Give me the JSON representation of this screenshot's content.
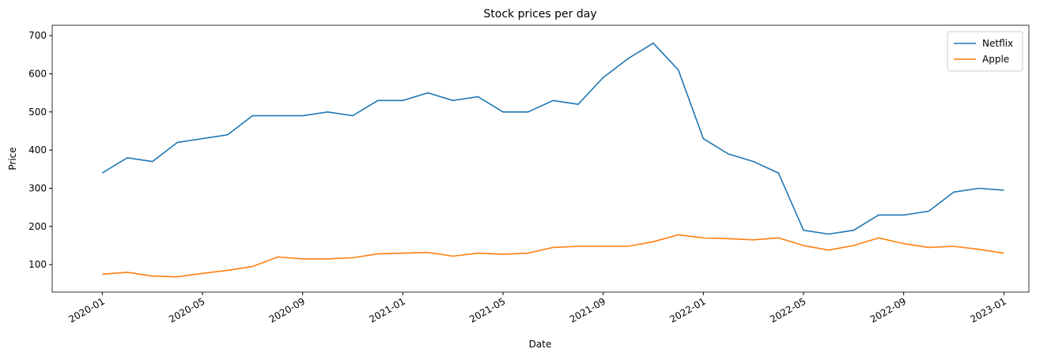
{
  "chart_data": {
    "type": "line",
    "title": "Stock prices per day",
    "x_label": "Date",
    "y_label": "Price",
    "x": [
      "2020-01",
      "2020-02",
      "2020-03",
      "2020-04",
      "2020-05",
      "2020-06",
      "2020-07",
      "2020-08",
      "2020-09",
      "2020-10",
      "2020-11",
      "2020-12",
      "2021-01",
      "2021-02",
      "2021-03",
      "2021-04",
      "2021-05",
      "2021-06",
      "2021-07",
      "2021-08",
      "2021-09",
      "2021-10",
      "2021-11",
      "2021-12",
      "2022-01",
      "2022-02",
      "2022-03",
      "2022-04",
      "2022-05",
      "2022-06",
      "2022-07",
      "2022-08",
      "2022-09",
      "2022-10",
      "2022-11",
      "2022-12",
      "2023-01"
    ],
    "series": [
      {
        "name": "Netflix",
        "color": "#1f77b4",
        "values": [
          340,
          380,
          370,
          420,
          430,
          440,
          490,
          490,
          490,
          500,
          490,
          530,
          530,
          550,
          530,
          540,
          500,
          500,
          530,
          520,
          590,
          640,
          680,
          610,
          430,
          390,
          370,
          340,
          190,
          180,
          190,
          230,
          230,
          240,
          290,
          300,
          295
        ]
      },
      {
        "name": "Apple",
        "color": "#ff7f0e",
        "values": [
          75,
          80,
          70,
          68,
          77,
          85,
          95,
          120,
          115,
          115,
          118,
          128,
          130,
          132,
          122,
          130,
          127,
          130,
          145,
          148,
          148,
          148,
          160,
          178,
          170,
          168,
          165,
          170,
          150,
          138,
          150,
          170,
          155,
          145,
          148,
          140,
          130
        ]
      }
    ],
    "xlim": [
      "2019-11",
      "2023-02"
    ],
    "xticks": [
      "2020-01",
      "2020-05",
      "2020-09",
      "2021-01",
      "2021-05",
      "2021-09",
      "2022-01",
      "2022-05",
      "2022-09",
      "2023-01"
    ],
    "ylim": [
      28,
      727
    ],
    "yticks": [
      100,
      200,
      300,
      400,
      500,
      600,
      700
    ],
    "legend": "upper right"
  }
}
